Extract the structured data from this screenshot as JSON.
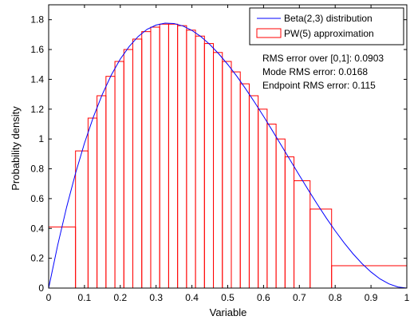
{
  "chart_data": {
    "type": "bar",
    "xlabel": "Variable",
    "ylabel": "Probability density",
    "xlim": [
      0,
      1
    ],
    "ylim": [
      0,
      1.9
    ],
    "xticks": [
      "0",
      "0.1",
      "0.2",
      "0.3",
      "0.4",
      "0.5",
      "0.6",
      "0.7",
      "0.8",
      "0.9",
      "1"
    ],
    "xtick_values": [
      0,
      0.1,
      0.2,
      0.3,
      0.4,
      0.5,
      0.6,
      0.7,
      0.8,
      0.9,
      1
    ],
    "yticks": [
      "0",
      "0.2",
      "0.4",
      "0.6",
      "0.8",
      "1",
      "1.2",
      "1.4",
      "1.6",
      "1.8"
    ],
    "ytick_values": [
      0,
      0.2,
      0.4,
      0.6,
      0.8,
      1,
      1.2,
      1.4,
      1.6,
      1.8
    ],
    "grid": false,
    "legend_position": "top-right",
    "series": [
      {
        "name": "Beta(2,3) distribution",
        "kind": "line",
        "color": "#0000ff",
        "x": [
          0,
          0.025,
          0.05,
          0.075,
          0.1,
          0.125,
          0.15,
          0.175,
          0.2,
          0.225,
          0.25,
          0.275,
          0.3,
          0.325,
          0.35,
          0.375,
          0.4,
          0.425,
          0.45,
          0.475,
          0.5,
          0.525,
          0.55,
          0.575,
          0.6,
          0.625,
          0.65,
          0.675,
          0.7,
          0.725,
          0.75,
          0.775,
          0.8,
          0.825,
          0.85,
          0.875,
          0.9,
          0.925,
          0.95,
          0.975,
          1
        ],
        "y": [
          0,
          0.2854,
          0.5415,
          0.7692,
          0.972,
          1.1484,
          1.3005,
          1.4297,
          1.536,
          1.6205,
          1.6875,
          1.7359,
          1.764,
          1.7767,
          1.7745,
          1.7578,
          1.728,
          1.6868,
          1.6335,
          1.5709,
          1.5,
          1.4218,
          1.3365,
          1.2463,
          1.152,
          1.0547,
          0.9555,
          0.8554,
          0.756,
          0.658,
          0.5625,
          0.4706,
          0.384,
          0.3033,
          0.2295,
          0.1641,
          0.108,
          0.0616,
          0.0285,
          0.0073,
          0
        ]
      },
      {
        "name": "PW(5) approximation",
        "kind": "bars",
        "color": "#ff0000",
        "bins": [
          {
            "x0": 0,
            "x1": 0.075,
            "y": 0.41
          },
          {
            "x0": 0.075,
            "x1": 0.11,
            "y": 0.92
          },
          {
            "x0": 0.11,
            "x1": 0.135,
            "y": 1.14
          },
          {
            "x0": 0.135,
            "x1": 0.16,
            "y": 1.29
          },
          {
            "x0": 0.16,
            "x1": 0.185,
            "y": 1.42
          },
          {
            "x0": 0.185,
            "x1": 0.21,
            "y": 1.52
          },
          {
            "x0": 0.21,
            "x1": 0.235,
            "y": 1.6
          },
          {
            "x0": 0.235,
            "x1": 0.26,
            "y": 1.67
          },
          {
            "x0": 0.26,
            "x1": 0.285,
            "y": 1.72
          },
          {
            "x0": 0.285,
            "x1": 0.31,
            "y": 1.75
          },
          {
            "x0": 0.31,
            "x1": 0.335,
            "y": 1.77
          },
          {
            "x0": 0.335,
            "x1": 0.36,
            "y": 1.77
          },
          {
            "x0": 0.36,
            "x1": 0.385,
            "y": 1.76
          },
          {
            "x0": 0.385,
            "x1": 0.41,
            "y": 1.73
          },
          {
            "x0": 0.41,
            "x1": 0.435,
            "y": 1.69
          },
          {
            "x0": 0.435,
            "x1": 0.46,
            "y": 1.64
          },
          {
            "x0": 0.46,
            "x1": 0.485,
            "y": 1.58
          },
          {
            "x0": 0.485,
            "x1": 0.51,
            "y": 1.52
          },
          {
            "x0": 0.51,
            "x1": 0.535,
            "y": 1.45
          },
          {
            "x0": 0.535,
            "x1": 0.56,
            "y": 1.37
          },
          {
            "x0": 0.56,
            "x1": 0.585,
            "y": 1.29
          },
          {
            "x0": 0.585,
            "x1": 0.61,
            "y": 1.2
          },
          {
            "x0": 0.61,
            "x1": 0.635,
            "y": 1.1
          },
          {
            "x0": 0.635,
            "x1": 0.66,
            "y": 1.0
          },
          {
            "x0": 0.66,
            "x1": 0.685,
            "y": 0.88
          },
          {
            "x0": 0.685,
            "x1": 0.73,
            "y": 0.72
          },
          {
            "x0": 0.73,
            "x1": 0.79,
            "y": 0.53
          },
          {
            "x0": 0.79,
            "x1": 1.0,
            "y": 0.15
          }
        ]
      }
    ],
    "annotations": [
      "RMS error over [0,1]: 0.0903",
      "Mode RMS error: 0.0168",
      "Endpoint RMS error: 0.115"
    ]
  }
}
